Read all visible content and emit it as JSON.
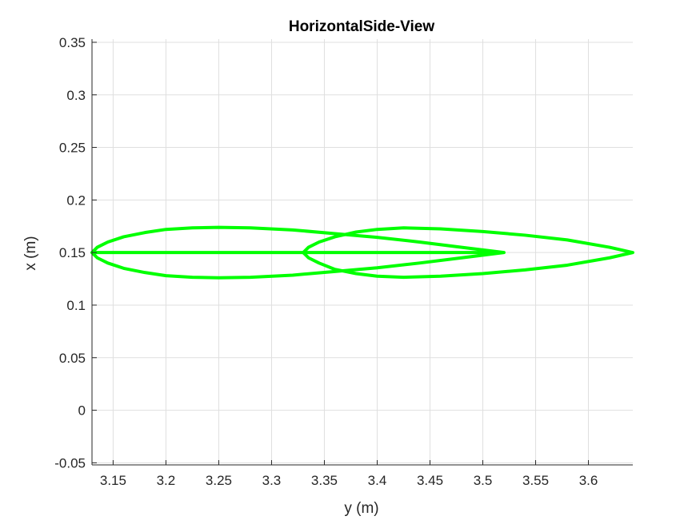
{
  "chart_data": {
    "type": "line",
    "title": "HorizontalSide-View",
    "xlabel": "y (m)",
    "ylabel": "x (m)",
    "xlim": [
      3.13,
      3.642
    ],
    "ylim": [
      -0.052,
      0.353
    ],
    "xticks": [
      3.15,
      3.2,
      3.25,
      3.3,
      3.35,
      3.4,
      3.45,
      3.5,
      3.55,
      3.6
    ],
    "xtick_labels": [
      "3.15",
      "3.2",
      "3.25",
      "3.3",
      "3.35",
      "3.4",
      "3.45",
      "3.5",
      "3.55",
      "3.6"
    ],
    "yticks": [
      -0.05,
      0,
      0.05,
      0.1,
      0.15,
      0.2,
      0.25,
      0.3,
      0.35
    ],
    "ytick_labels": [
      "-0.05",
      "0",
      "0.05",
      "0.1",
      "0.15",
      "0.2",
      "0.25",
      "0.3",
      "0.35"
    ],
    "grid": true,
    "line_color": "#00ff00",
    "series": [
      {
        "x": [
          3.13,
          3.135,
          3.145,
          3.16,
          3.18,
          3.2,
          3.225,
          3.25,
          3.28,
          3.32,
          3.36,
          3.4,
          3.44,
          3.48,
          3.52,
          3.48,
          3.44,
          3.4,
          3.36,
          3.32,
          3.28,
          3.25,
          3.225,
          3.2,
          3.18,
          3.16,
          3.145,
          3.135,
          3.13,
          3.52
        ],
        "y": [
          0.15,
          0.155,
          0.16,
          0.165,
          0.169,
          0.172,
          0.1735,
          0.174,
          0.1735,
          0.1715,
          0.168,
          0.1645,
          0.16,
          0.155,
          0.15,
          0.145,
          0.14,
          0.1355,
          0.132,
          0.1285,
          0.1265,
          0.126,
          0.1265,
          0.128,
          0.131,
          0.135,
          0.14,
          0.145,
          0.15,
          0.15
        ]
      },
      {
        "x": [
          3.33,
          3.335,
          3.345,
          3.36,
          3.38,
          3.4,
          3.425,
          3.46,
          3.5,
          3.54,
          3.58,
          3.62,
          3.642,
          3.62,
          3.58,
          3.54,
          3.5,
          3.46,
          3.425,
          3.4,
          3.38,
          3.36,
          3.345,
          3.335,
          3.33
        ],
        "y": [
          0.15,
          0.155,
          0.16,
          0.165,
          0.1695,
          0.172,
          0.1735,
          0.1725,
          0.17,
          0.1665,
          0.162,
          0.155,
          0.15,
          0.145,
          0.138,
          0.1335,
          0.13,
          0.1275,
          0.1265,
          0.1275,
          0.13,
          0.134,
          0.14,
          0.145,
          0.15
        ]
      }
    ]
  }
}
